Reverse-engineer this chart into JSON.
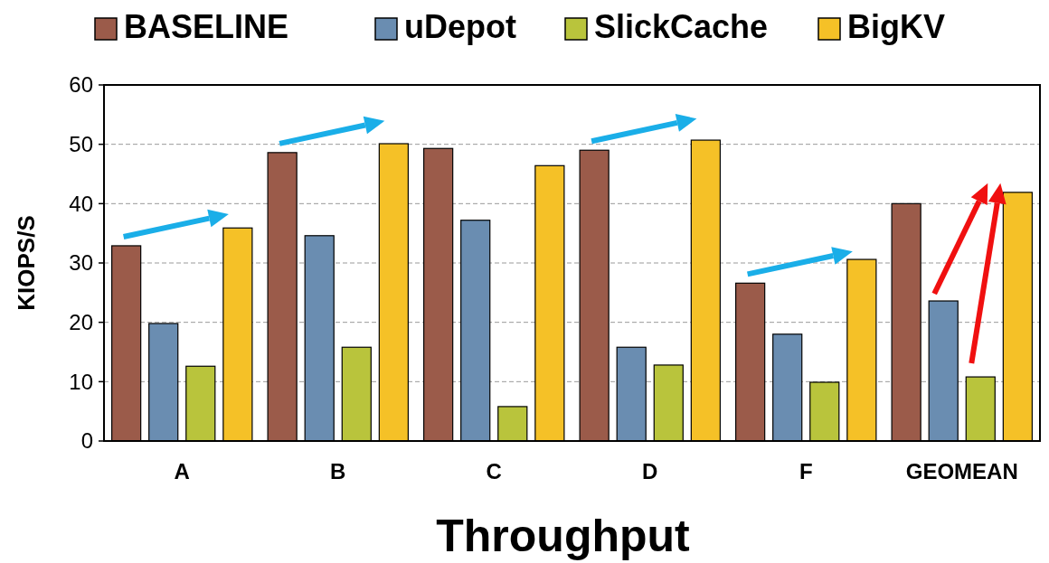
{
  "chart_data": {
    "type": "bar",
    "xlabel": "Throughput",
    "ylabel": "KIOPS/S",
    "categories": [
      "A",
      "B",
      "C",
      "D",
      "F",
      "GEOMEAN"
    ],
    "series": [
      {
        "name": "BASELINE",
        "color": "#9b5b4a",
        "values": [
          32.9,
          48.6,
          49.3,
          49.0,
          26.6,
          40.0
        ]
      },
      {
        "name": "uDepot",
        "color": "#6a8db1",
        "values": [
          19.8,
          34.6,
          37.2,
          15.8,
          18.0,
          23.6
        ]
      },
      {
        "name": "SlickCache",
        "color": "#b9c43c",
        "values": [
          12.6,
          15.8,
          5.8,
          12.8,
          9.9,
          10.8
        ]
      },
      {
        "name": "BigKV",
        "color": "#f5c127",
        "values": [
          35.9,
          50.1,
          46.4,
          50.7,
          30.6,
          41.9
        ]
      }
    ],
    "ylim": [
      0,
      60
    ],
    "yticks": [
      0,
      10,
      20,
      30,
      40,
      50,
      60
    ],
    "grid": "y",
    "legend": "top"
  }
}
